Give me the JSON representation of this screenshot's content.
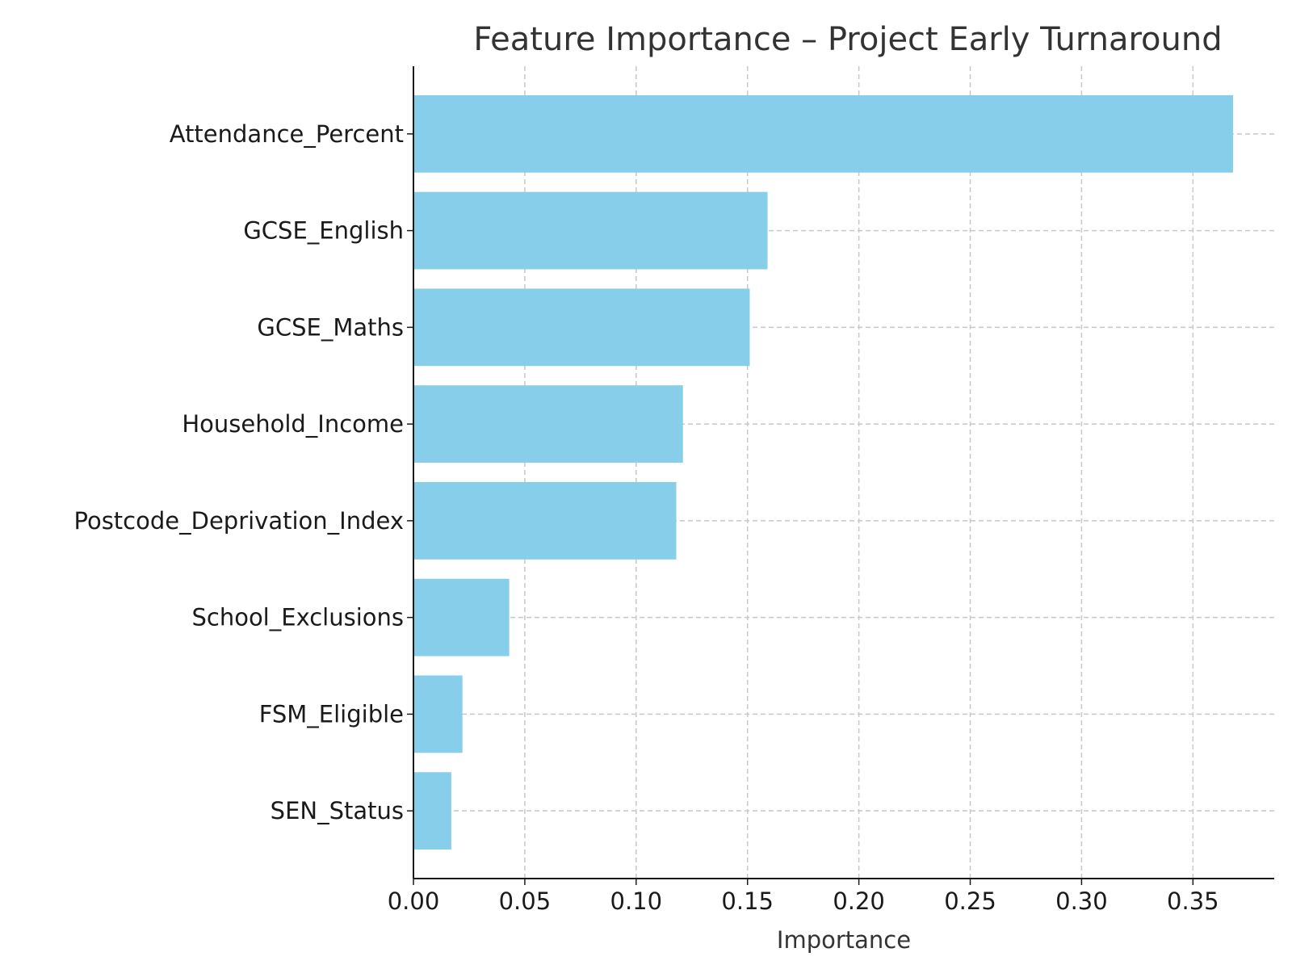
{
  "chart_data": {
    "type": "bar",
    "orientation": "horizontal",
    "title": "Feature Importance – Project Early Turnaround",
    "xlabel": "Importance",
    "ylabel": "",
    "categories": [
      "Attendance_Percent",
      "GCSE_English",
      "GCSE_Maths",
      "Household_Income",
      "Postcode_Deprivation_Index",
      "School_Exclusions",
      "FSM_Eligible",
      "SEN_Status"
    ],
    "values": [
      0.368,
      0.159,
      0.151,
      0.121,
      0.118,
      0.043,
      0.022,
      0.017
    ],
    "xlim": [
      0,
      0.3865
    ],
    "xticks": [
      0.0,
      0.05,
      0.1,
      0.15,
      0.2,
      0.25,
      0.3,
      0.35
    ],
    "xtick_labels": [
      "0.00",
      "0.05",
      "0.10",
      "0.15",
      "0.20",
      "0.25",
      "0.30",
      "0.35"
    ],
    "grid": true,
    "bar_color": "#87ceeb"
  }
}
